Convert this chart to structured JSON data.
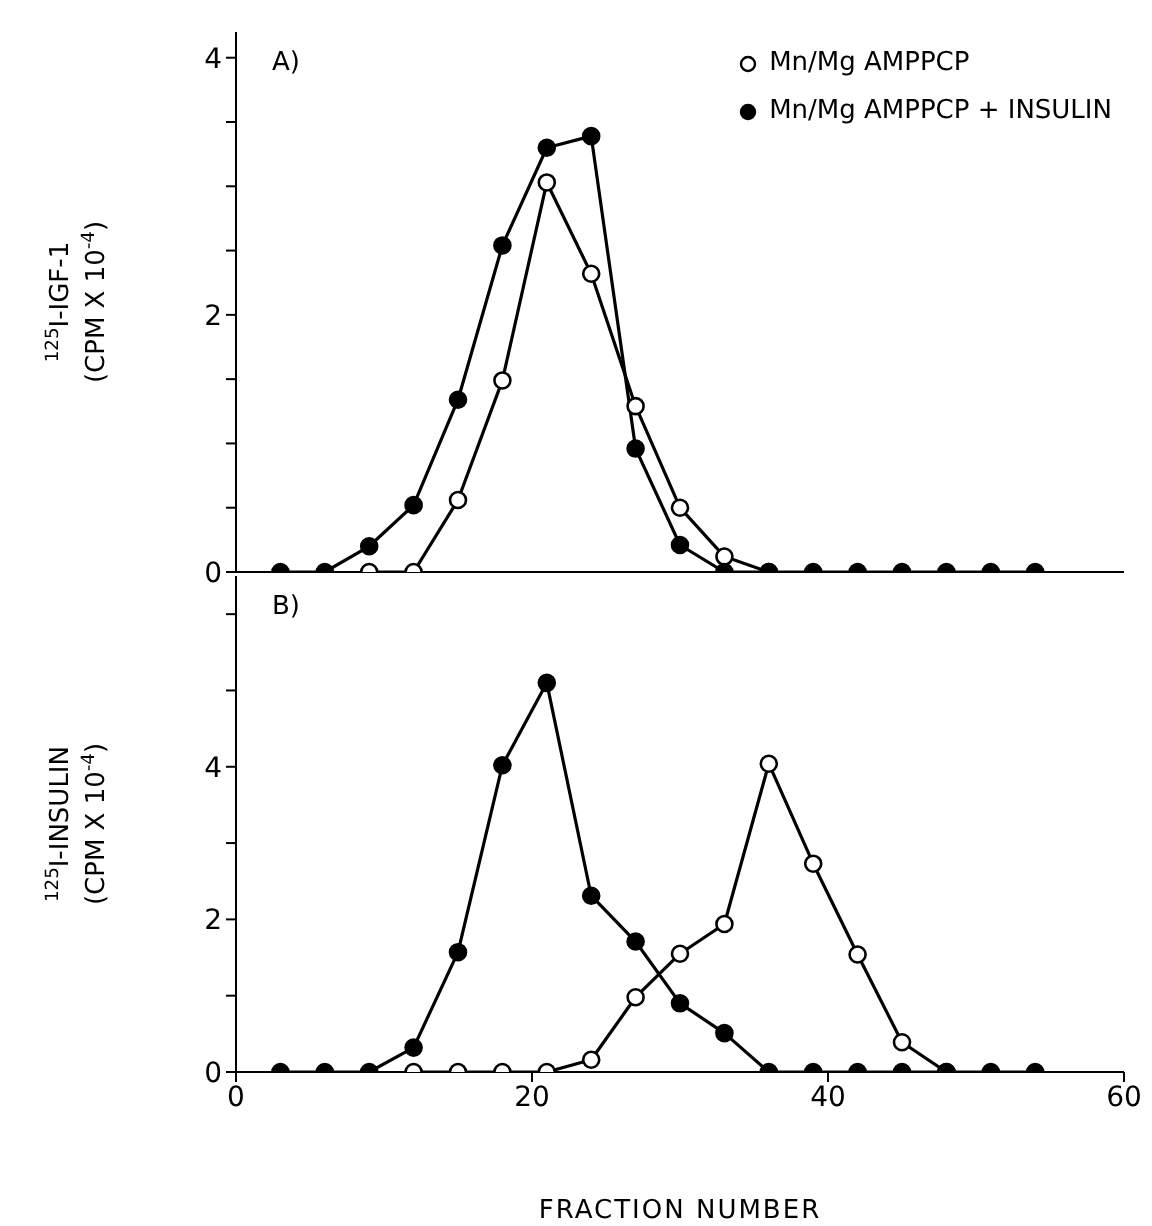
{
  "chart_data": [
    {
      "type": "line",
      "ylabel": "$^{125}$I-IGF-1\n(CPM X 10$^{-4}$)",
      "annotations": [
        "A)"
      ],
      "x": [
        3,
        6,
        9,
        12,
        15,
        18,
        21,
        24,
        27,
        30,
        33,
        36,
        39,
        42,
        45,
        48,
        51,
        54
      ],
      "xlim": [
        0,
        60
      ],
      "xticks": [
        0,
        20,
        40,
        60
      ],
      "ylim": [
        0,
        4.2
      ],
      "yticks": [
        0,
        {
          "value": 0.5,
          "label": null
        },
        {
          "value": 1,
          "label": null
        },
        {
          "value": 1.5,
          "label": null
        },
        2,
        {
          "value": 2.5,
          "label": null
        },
        {
          "value": 3,
          "label": null
        },
        {
          "value": 3.5,
          "label": null
        },
        4
      ],
      "tick_labels": "y",
      "grid": false,
      "legend": "top right",
      "marker": "circle",
      "line_style": "solid",
      "series": [
        {
          "name": "Mn/Mg AMPPCP",
          "color": "#000000",
          "values": [
            null,
            null,
            0,
            0,
            0.56,
            1.49,
            3.03,
            2.32,
            1.29,
            0.5,
            0.12,
            0,
            null,
            null,
            null,
            null,
            null,
            null
          ]
        },
        {
          "name": "Mn/Mg AMPPCP + INSULIN",
          "color": "#000000",
          "values": [
            0,
            0,
            0.2,
            0.52,
            1.34,
            2.54,
            3.3,
            3.39,
            0.96,
            0.21,
            0,
            0,
            0,
            0,
            0,
            0,
            0,
            0
          ]
        }
      ]
    },
    {
      "type": "line",
      "ylabel": "$^{125}$I-INSULIN\n(CPM X 10$^{-4}$)",
      "xlabel": "FRACTION NUMBER",
      "annotations": [
        "B)"
      ],
      "x": [
        3,
        6,
        9,
        12,
        15,
        18,
        21,
        24,
        27,
        30,
        33,
        36,
        39,
        42,
        45,
        48,
        51,
        54
      ],
      "xlim": [
        0,
        60
      ],
      "xticks": [
        0,
        20,
        40,
        60
      ],
      "ylim": [
        0,
        6.5
      ],
      "yticks": [
        0,
        {
          "value": 1,
          "label": null
        },
        2,
        {
          "value": 3,
          "label": null
        },
        4,
        {
          "value": 5,
          "label": null
        },
        {
          "value": 6,
          "label": null
        }
      ],
      "grid": false,
      "legend": false,
      "marker": "circle",
      "line_style": "solid",
      "series": [
        {
          "color": "#000000",
          "values": [
            null,
            null,
            null,
            0,
            0,
            0,
            0,
            0.16,
            0.98,
            1.55,
            1.94,
            4.04,
            2.73,
            1.54,
            0.39,
            0,
            null,
            null
          ]
        },
        {
          "color": "#000000",
          "values": [
            0,
            0,
            0,
            0.32,
            1.57,
            4.02,
            5.1,
            2.31,
            1.71,
            0.9,
            0.51,
            0,
            0,
            0,
            0,
            0,
            0,
            0
          ]
        }
      ]
    }
  ]
}
